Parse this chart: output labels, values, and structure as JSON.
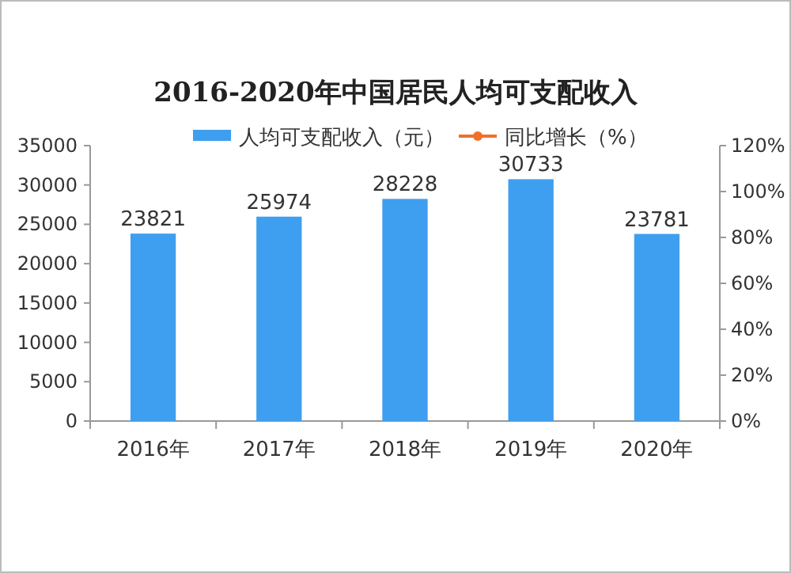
{
  "chart_data": {
    "type": "bar",
    "title": "2016-2020年中国居民人均可支配收入",
    "categories": [
      "2016年",
      "2017年",
      "2018年",
      "2019年",
      "2020年"
    ],
    "series": [
      {
        "name": "人均可支配收入（元）",
        "color": "#3e9ff0",
        "values": [
          23821,
          25974,
          28228,
          30733,
          23781
        ]
      },
      {
        "name": "同比增长（%）",
        "type": "line",
        "color": "#f0702a",
        "marker": "circle",
        "values": [
          null,
          null,
          null,
          null,
          null
        ]
      }
    ],
    "data_labels": true,
    "ylim": [
      0,
      35000
    ],
    "yticks": [
      0,
      5000,
      10000,
      15000,
      20000,
      25000,
      30000,
      35000
    ],
    "y2lim": [
      0,
      120
    ],
    "y2ticks": [
      {
        "value": 0,
        "label": "0%"
      },
      {
        "value": 20,
        "label": "20%"
      },
      {
        "value": 40,
        "label": "40%"
      },
      {
        "value": 60,
        "label": "60%"
      },
      {
        "value": 80,
        "label": "80%"
      },
      {
        "value": 100,
        "label": "100%"
      },
      {
        "value": 120,
        "label": "120%"
      }
    ],
    "legend": "top",
    "grid": false
  }
}
